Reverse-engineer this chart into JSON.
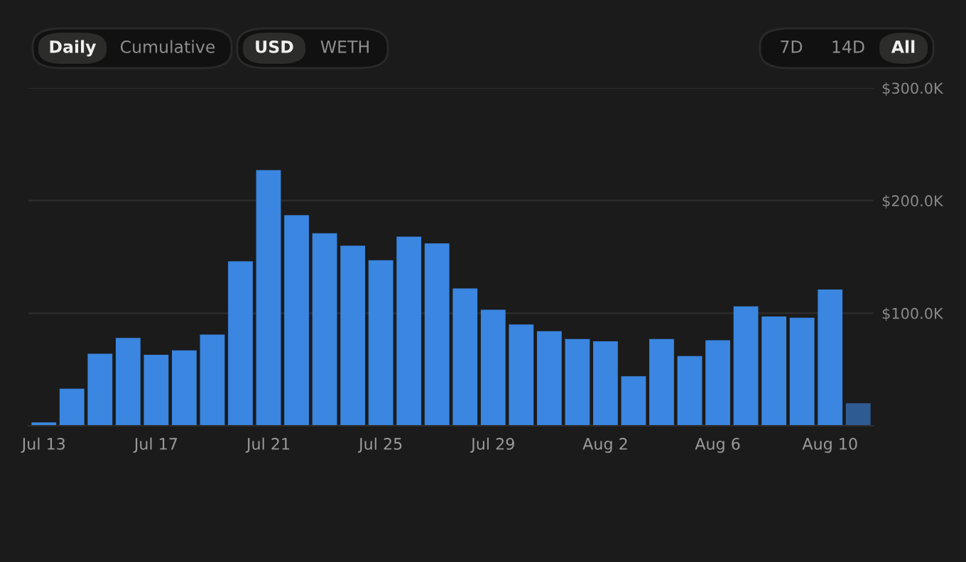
{
  "chart_data": {
    "type": "bar",
    "categories": [
      "Jul 13",
      null,
      null,
      null,
      "Jul 17",
      null,
      null,
      null,
      "Jul 21",
      null,
      null,
      null,
      "Jul 25",
      null,
      null,
      null,
      "Jul 29",
      null,
      null,
      null,
      "Aug 2",
      null,
      null,
      null,
      "Aug 6",
      null,
      null,
      null,
      "Aug 10",
      null
    ],
    "values": [
      3000,
      33000,
      64000,
      78000,
      63000,
      67000,
      81000,
      146000,
      227000,
      187000,
      171000,
      160000,
      147000,
      168000,
      162000,
      122000,
      103000,
      90000,
      84000,
      77000,
      75000,
      44000,
      77000,
      62000,
      76000,
      106000,
      97000,
      96000,
      121000,
      20000
    ],
    "colors": [
      "#3a86e0",
      "#3a86e0",
      "#3a86e0",
      "#3a86e0",
      "#3a86e0",
      "#3a86e0",
      "#3a86e0",
      "#3a86e0",
      "#3a86e0",
      "#3a86e0",
      "#3a86e0",
      "#3a86e0",
      "#3a86e0",
      "#3a86e0",
      "#3a86e0",
      "#3a86e0",
      "#3a86e0",
      "#3a86e0",
      "#3a86e0",
      "#3a86e0",
      "#3a86e0",
      "#3a86e0",
      "#3a86e0",
      "#3a86e0",
      "#3a86e0",
      "#3a86e0",
      "#3a86e0",
      "#3a86e0",
      "#3a86e0",
      "#2f5b93"
    ],
    "ylim": [
      0,
      300000
    ],
    "yticks": [
      {
        "value": 0,
        "label": null
      },
      {
        "value": 100000,
        "label": "$100.0K"
      },
      {
        "value": 200000,
        "label": "$200.0K"
      },
      {
        "value": 300000,
        "label": "$300.0K"
      }
    ],
    "grid": "y",
    "annotations": [
      "Daily",
      "Cumulative",
      "USD",
      "WETH",
      "7D",
      "14D",
      "All"
    ]
  }
}
